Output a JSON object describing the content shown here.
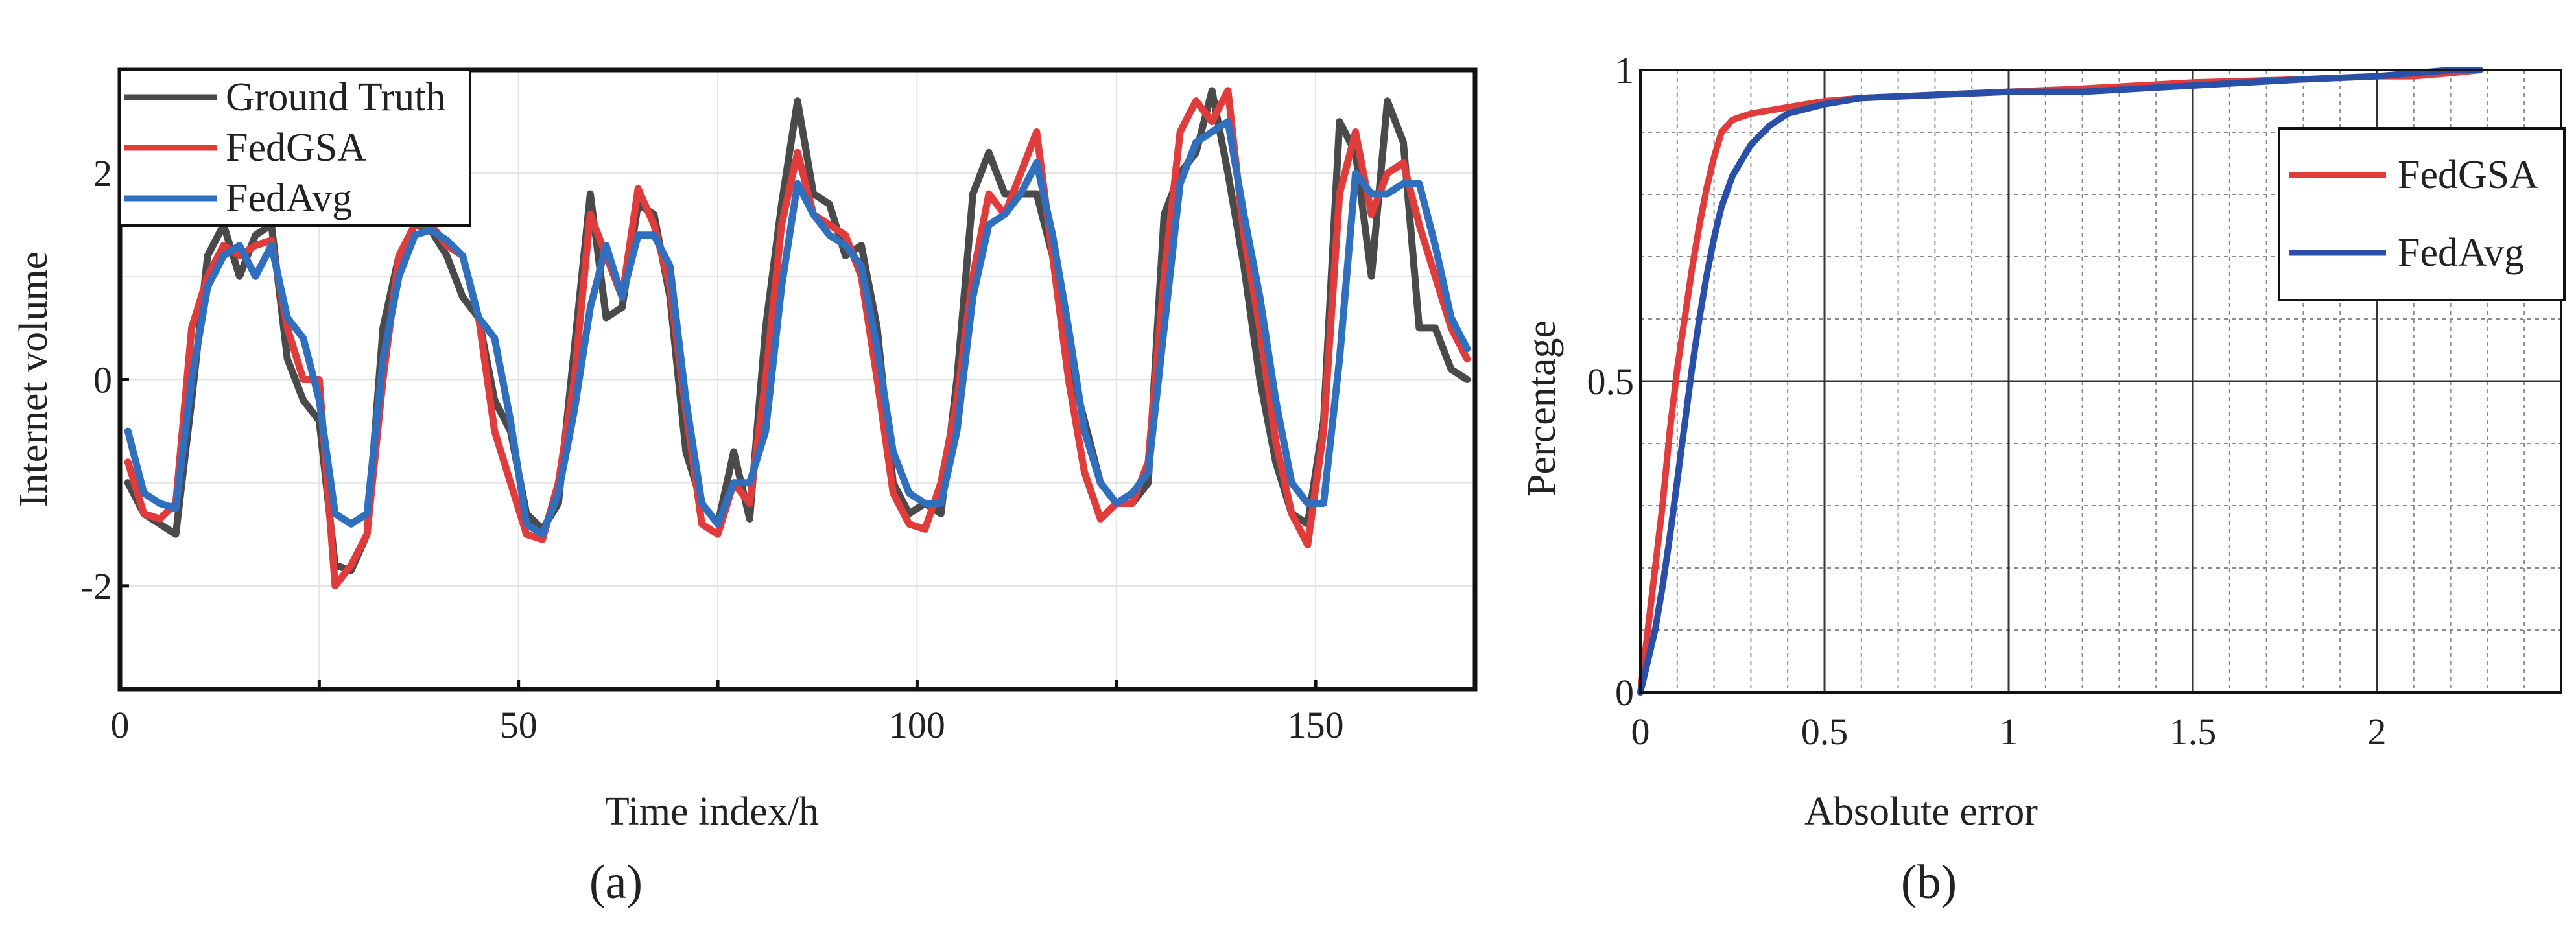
{
  "figure": {
    "caption_a": "(a)",
    "caption_b": "(b)",
    "colors": {
      "ground_truth": "#4a4a4a",
      "fedgsa": "#e03c3c",
      "fedavg": "#2f6fbd",
      "fedavg_cdf": "#2a4fa8"
    }
  },
  "chart_data": [
    {
      "id": "a",
      "type": "line",
      "title": "",
      "xlabel": "Time index/h",
      "ylabel": "Internet volume",
      "xlim": [
        0,
        170
      ],
      "ylim": [
        -3,
        3
      ],
      "xticks": [
        0,
        50,
        100,
        150
      ],
      "yticks": [
        -2,
        0,
        2
      ],
      "xtick_labels": [
        "0",
        "50",
        "100",
        "150"
      ],
      "ytick_labels": [
        "-2",
        "0",
        "2"
      ],
      "grid": true,
      "legend_position": "top-left",
      "x": [
        1,
        3,
        5,
        7,
        9,
        11,
        13,
        15,
        17,
        19,
        21,
        23,
        25,
        27,
        29,
        31,
        33,
        35,
        37,
        39,
        41,
        43,
        45,
        47,
        49,
        51,
        53,
        55,
        57,
        59,
        61,
        63,
        65,
        67,
        69,
        71,
        73,
        75,
        77,
        79,
        81,
        83,
        85,
        87,
        89,
        91,
        93,
        95,
        97,
        99,
        101,
        103,
        105,
        107,
        109,
        111,
        113,
        115,
        117,
        119,
        121,
        123,
        125,
        127,
        129,
        131,
        133,
        135,
        137,
        139,
        141,
        143,
        145,
        147,
        149,
        151,
        153,
        155,
        157,
        159,
        161,
        163,
        165,
        167,
        169
      ],
      "series": [
        {
          "name": "Ground Truth",
          "color": "#4a4a4a",
          "values": [
            -1.0,
            -1.3,
            -1.4,
            -1.5,
            -0.2,
            1.2,
            1.5,
            1.0,
            1.4,
            1.5,
            0.2,
            -0.2,
            -0.4,
            -1.8,
            -1.85,
            -1.5,
            0.5,
            1.2,
            1.5,
            1.45,
            1.2,
            0.8,
            0.6,
            -0.2,
            -0.5,
            -1.3,
            -1.45,
            -1.2,
            0.3,
            1.8,
            0.6,
            0.7,
            1.7,
            1.6,
            0.8,
            -0.7,
            -1.2,
            -1.4,
            -0.7,
            -1.35,
            0.5,
            1.7,
            2.7,
            1.8,
            1.7,
            1.2,
            1.3,
            0.5,
            -1.0,
            -1.3,
            -1.2,
            -1.3,
            0.0,
            1.8,
            2.2,
            1.8,
            1.8,
            1.8,
            1.2,
            0.2,
            -0.4,
            -1.0,
            -1.2,
            -1.2,
            -1.0,
            1.6,
            2.0,
            2.2,
            2.8,
            2.0,
            1.1,
            0.0,
            -0.8,
            -1.3,
            -1.4,
            -0.4,
            2.5,
            2.2,
            1.0,
            2.7,
            2.3,
            0.5,
            0.5,
            0.1,
            0.0
          ]
        },
        {
          "name": "FedGSA",
          "color": "#e03c3c",
          "values": [
            -0.8,
            -1.3,
            -1.35,
            -1.2,
            0.5,
            1.0,
            1.3,
            1.2,
            1.3,
            1.35,
            0.5,
            0.0,
            0.0,
            -2.0,
            -1.8,
            -1.5,
            0.0,
            1.2,
            1.5,
            1.5,
            1.3,
            1.2,
            0.6,
            -0.5,
            -1.0,
            -1.5,
            -1.55,
            -1.0,
            0.0,
            1.6,
            1.2,
            0.8,
            1.85,
            1.5,
            0.9,
            -0.3,
            -1.4,
            -1.5,
            -1.0,
            -1.2,
            0.0,
            1.5,
            2.2,
            1.6,
            1.5,
            1.4,
            1.0,
            0.0,
            -1.1,
            -1.4,
            -1.45,
            -1.0,
            -0.2,
            1.0,
            1.8,
            1.6,
            2.0,
            2.4,
            1.2,
            0.0,
            -0.9,
            -1.35,
            -1.2,
            -1.2,
            -0.8,
            1.0,
            2.4,
            2.7,
            2.5,
            2.8,
            1.4,
            0.5,
            -0.6,
            -1.3,
            -1.6,
            -0.5,
            1.8,
            2.4,
            1.6,
            2.0,
            2.1,
            1.5,
            1.0,
            0.5,
            0.2
          ]
        },
        {
          "name": "FedAvg",
          "color": "#2f6fbd",
          "values": [
            -0.5,
            -1.1,
            -1.2,
            -1.25,
            0.0,
            0.9,
            1.2,
            1.3,
            1.0,
            1.3,
            0.6,
            0.4,
            -0.2,
            -1.3,
            -1.4,
            -1.3,
            0.2,
            1.0,
            1.4,
            1.45,
            1.35,
            1.2,
            0.6,
            0.4,
            -0.4,
            -1.4,
            -1.5,
            -1.1,
            -0.3,
            0.7,
            1.3,
            0.8,
            1.4,
            1.4,
            1.1,
            -0.2,
            -1.2,
            -1.4,
            -1.0,
            -1.0,
            -0.5,
            0.9,
            1.9,
            1.6,
            1.4,
            1.3,
            1.1,
            0.3,
            -0.7,
            -1.1,
            -1.2,
            -1.2,
            -0.5,
            0.8,
            1.5,
            1.6,
            1.8,
            2.1,
            1.4,
            0.5,
            -0.5,
            -1.0,
            -1.2,
            -1.1,
            -0.9,
            0.5,
            1.9,
            2.3,
            2.4,
            2.5,
            1.6,
            0.8,
            -0.2,
            -1.0,
            -1.2,
            -1.2,
            0.2,
            2.0,
            1.8,
            1.8,
            1.9,
            1.9,
            1.3,
            0.6,
            0.3
          ]
        }
      ]
    },
    {
      "id": "b",
      "type": "line",
      "title": "",
      "xlabel": "Absolute error",
      "ylabel": "Percentage",
      "xlim": [
        0,
        2.5
      ],
      "ylim": [
        0,
        1
      ],
      "xticks": [
        0,
        0.5,
        1,
        1.5,
        2
      ],
      "yticks": [
        0,
        0.5,
        1
      ],
      "xtick_labels": [
        "0",
        "0.5",
        "1",
        "1.5",
        "2"
      ],
      "ytick_labels": [
        "0",
        "0.5",
        "1"
      ],
      "grid": true,
      "minor_grid": true,
      "legend_position": "top-right",
      "series": [
        {
          "name": "FedGSA",
          "color": "#e03c3c",
          "x": [
            0,
            0.02,
            0.04,
            0.06,
            0.08,
            0.1,
            0.12,
            0.14,
            0.16,
            0.18,
            0.2,
            0.22,
            0.25,
            0.3,
            0.35,
            0.4,
            0.5,
            0.6,
            0.8,
            1.0,
            1.2,
            1.5,
            1.8,
            2.0,
            2.1,
            2.2,
            2.28
          ],
          "values": [
            0,
            0.1,
            0.2,
            0.3,
            0.42,
            0.52,
            0.6,
            0.68,
            0.75,
            0.81,
            0.86,
            0.9,
            0.92,
            0.93,
            0.935,
            0.94,
            0.95,
            0.955,
            0.96,
            0.965,
            0.97,
            0.98,
            0.985,
            0.99,
            0.99,
            0.995,
            1.0
          ]
        },
        {
          "name": "FedAvg",
          "color": "#2a4fa8",
          "x": [
            0,
            0.02,
            0.04,
            0.06,
            0.08,
            0.1,
            0.12,
            0.14,
            0.16,
            0.18,
            0.2,
            0.22,
            0.25,
            0.3,
            0.35,
            0.4,
            0.5,
            0.6,
            0.8,
            1.0,
            1.2,
            1.5,
            1.8,
            2.0,
            2.1,
            2.2,
            2.28
          ],
          "values": [
            0,
            0.05,
            0.1,
            0.17,
            0.25,
            0.34,
            0.43,
            0.52,
            0.6,
            0.67,
            0.73,
            0.78,
            0.83,
            0.88,
            0.91,
            0.93,
            0.945,
            0.955,
            0.96,
            0.965,
            0.965,
            0.975,
            0.985,
            0.99,
            0.995,
            1.0,
            1.0
          ]
        }
      ]
    }
  ]
}
